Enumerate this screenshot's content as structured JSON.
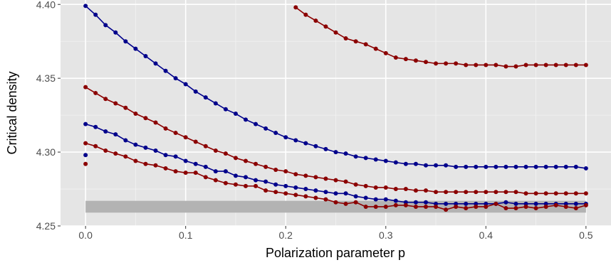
{
  "chart_data": {
    "type": "line",
    "title": "",
    "xlabel": "Polarization parameter p",
    "ylabel": "Critical density",
    "xlim": [
      -0.025,
      0.525
    ],
    "ylim": [
      4.25,
      4.403
    ],
    "x_ticks": [
      0.0,
      0.1,
      0.2,
      0.3,
      0.4,
      0.5
    ],
    "x_tick_labels": [
      "0.0",
      "0.1",
      "0.2",
      "0.3",
      "0.4",
      "0.5"
    ],
    "y_ticks": [
      4.25,
      4.3,
      4.35,
      4.4
    ],
    "y_tick_labels": [
      "4.25",
      "4.30",
      "4.35",
      "4.40"
    ],
    "grid": true,
    "legend": "none",
    "panel_background": "#e5e5e5",
    "band": {
      "x": [
        0.0,
        0.5
      ],
      "y": [
        4.259,
        4.267
      ],
      "color": "#b3b3b3"
    },
    "series": [
      {
        "color": "#00008b",
        "x": [
          0.0,
          0.01,
          0.02,
          0.03,
          0.04,
          0.05,
          0.06,
          0.07,
          0.08,
          0.09,
          0.1,
          0.11,
          0.12,
          0.13,
          0.14,
          0.15,
          0.16,
          0.17,
          0.18,
          0.19,
          0.2,
          0.21,
          0.22,
          0.23,
          0.24,
          0.25,
          0.26,
          0.27,
          0.28,
          0.29,
          0.3,
          0.31,
          0.32,
          0.33,
          0.34,
          0.35,
          0.36,
          0.37,
          0.38,
          0.39,
          0.4,
          0.41,
          0.42,
          0.43,
          0.44,
          0.45,
          0.46,
          0.47,
          0.48,
          0.49,
          0.5
        ],
        "y": [
          4.399,
          4.393,
          4.386,
          4.381,
          4.375,
          4.37,
          4.365,
          4.36,
          4.355,
          4.35,
          4.346,
          4.341,
          4.337,
          4.333,
          4.329,
          4.326,
          4.322,
          4.319,
          4.316,
          4.313,
          4.31,
          4.308,
          4.306,
          4.304,
          4.302,
          4.3,
          4.299,
          4.297,
          4.296,
          4.295,
          4.294,
          4.293,
          4.292,
          4.292,
          4.291,
          4.291,
          4.291,
          4.29,
          4.29,
          4.29,
          4.29,
          4.29,
          4.29,
          4.29,
          4.29,
          4.29,
          4.29,
          4.29,
          4.29,
          4.29,
          4.289
        ]
      },
      {
        "color": "#8b0000",
        "x": [
          0.21,
          0.22,
          0.23,
          0.24,
          0.25,
          0.26,
          0.27,
          0.28,
          0.29,
          0.3,
          0.31,
          0.32,
          0.33,
          0.34,
          0.35,
          0.36,
          0.37,
          0.38,
          0.39,
          0.4,
          0.41,
          0.42,
          0.43,
          0.44,
          0.45,
          0.46,
          0.47,
          0.48,
          0.49,
          0.5
        ],
        "y": [
          4.398,
          4.393,
          4.389,
          4.385,
          4.381,
          4.377,
          4.375,
          4.373,
          4.37,
          4.367,
          4.364,
          4.363,
          4.362,
          4.361,
          4.36,
          4.36,
          4.36,
          4.359,
          4.359,
          4.359,
          4.359,
          4.358,
          4.358,
          4.359,
          4.359,
          4.359,
          4.359,
          4.359,
          4.359,
          4.359
        ]
      },
      {
        "color": "#8b0000",
        "x": [
          0.0,
          0.01,
          0.02,
          0.03,
          0.04,
          0.05,
          0.06,
          0.07,
          0.08,
          0.09,
          0.1,
          0.11,
          0.12,
          0.13,
          0.14,
          0.15,
          0.16,
          0.17,
          0.18,
          0.19,
          0.2,
          0.21,
          0.22,
          0.23,
          0.24,
          0.25,
          0.26,
          0.27,
          0.28,
          0.29,
          0.3,
          0.31,
          0.32,
          0.33,
          0.34,
          0.35,
          0.36,
          0.37,
          0.38,
          0.39,
          0.4,
          0.41,
          0.42,
          0.43,
          0.44,
          0.45,
          0.46,
          0.47,
          0.48,
          0.49,
          0.5
        ],
        "y": [
          4.344,
          4.34,
          4.336,
          4.333,
          4.33,
          4.326,
          4.323,
          4.32,
          4.316,
          4.313,
          4.31,
          4.307,
          4.304,
          4.301,
          4.299,
          4.296,
          4.294,
          4.292,
          4.29,
          4.288,
          4.287,
          4.285,
          4.284,
          4.283,
          4.282,
          4.281,
          4.28,
          4.278,
          4.277,
          4.276,
          4.276,
          4.275,
          4.275,
          4.274,
          4.274,
          4.273,
          4.273,
          4.273,
          4.273,
          4.273,
          4.273,
          4.273,
          4.273,
          4.273,
          4.272,
          4.272,
          4.272,
          4.272,
          4.272,
          4.272,
          4.272
        ]
      },
      {
        "color": "#00008b",
        "x": [
          0.0,
          0.01,
          0.02,
          0.03,
          0.04,
          0.05,
          0.06,
          0.07,
          0.08,
          0.09,
          0.1,
          0.11,
          0.12,
          0.13,
          0.14,
          0.15,
          0.16,
          0.17,
          0.18,
          0.19,
          0.2,
          0.21,
          0.22,
          0.23,
          0.24,
          0.25,
          0.26,
          0.27,
          0.28,
          0.29,
          0.3,
          0.31,
          0.32,
          0.33,
          0.34,
          0.35,
          0.36,
          0.37,
          0.38,
          0.39,
          0.4,
          0.41,
          0.42,
          0.43,
          0.44,
          0.45,
          0.46,
          0.47,
          0.48,
          0.49,
          0.5
        ],
        "y": [
          4.319,
          4.317,
          4.314,
          4.312,
          4.308,
          4.305,
          4.303,
          4.301,
          4.298,
          4.297,
          4.294,
          4.292,
          4.29,
          4.287,
          4.287,
          4.284,
          4.283,
          4.281,
          4.28,
          4.278,
          4.277,
          4.276,
          4.275,
          4.274,
          4.273,
          4.272,
          4.272,
          4.27,
          4.269,
          4.268,
          4.268,
          4.267,
          4.266,
          4.266,
          4.266,
          4.265,
          4.265,
          4.265,
          4.265,
          4.265,
          4.265,
          4.265,
          4.266,
          4.265,
          4.265,
          4.265,
          4.265,
          4.265,
          4.265,
          4.265,
          4.265
        ]
      },
      {
        "color": "#8b0000",
        "x": [
          0.0,
          0.01,
          0.02,
          0.03,
          0.04,
          0.05,
          0.06,
          0.07,
          0.08,
          0.09,
          0.1,
          0.11,
          0.12,
          0.13,
          0.14,
          0.15,
          0.16,
          0.17,
          0.18,
          0.19,
          0.2,
          0.21,
          0.22,
          0.23,
          0.24,
          0.25,
          0.26,
          0.27,
          0.28,
          0.29,
          0.3,
          0.31,
          0.32,
          0.33,
          0.34,
          0.35,
          0.36,
          0.37,
          0.38,
          0.39,
          0.4,
          0.41,
          0.42,
          0.43,
          0.44,
          0.45,
          0.46,
          0.47,
          0.48,
          0.49,
          0.5
        ],
        "y": [
          4.306,
          4.304,
          4.301,
          4.299,
          4.297,
          4.294,
          4.292,
          4.291,
          4.289,
          4.287,
          4.286,
          4.286,
          4.283,
          4.281,
          4.279,
          4.278,
          4.277,
          4.277,
          4.274,
          4.273,
          4.272,
          4.271,
          4.27,
          4.269,
          4.268,
          4.266,
          4.265,
          4.266,
          4.263,
          4.263,
          4.263,
          4.264,
          4.264,
          4.263,
          4.263,
          4.263,
          4.261,
          4.263,
          4.262,
          4.263,
          4.263,
          4.265,
          4.262,
          4.262,
          4.263,
          4.262,
          4.263,
          4.264,
          4.263,
          4.262,
          4.264
        ]
      },
      {
        "color": "#00008b",
        "x": [
          0.0
        ],
        "y": [
          4.298
        ]
      },
      {
        "color": "#8b0000",
        "x": [
          0.0
        ],
        "y": [
          4.292
        ]
      }
    ]
  }
}
